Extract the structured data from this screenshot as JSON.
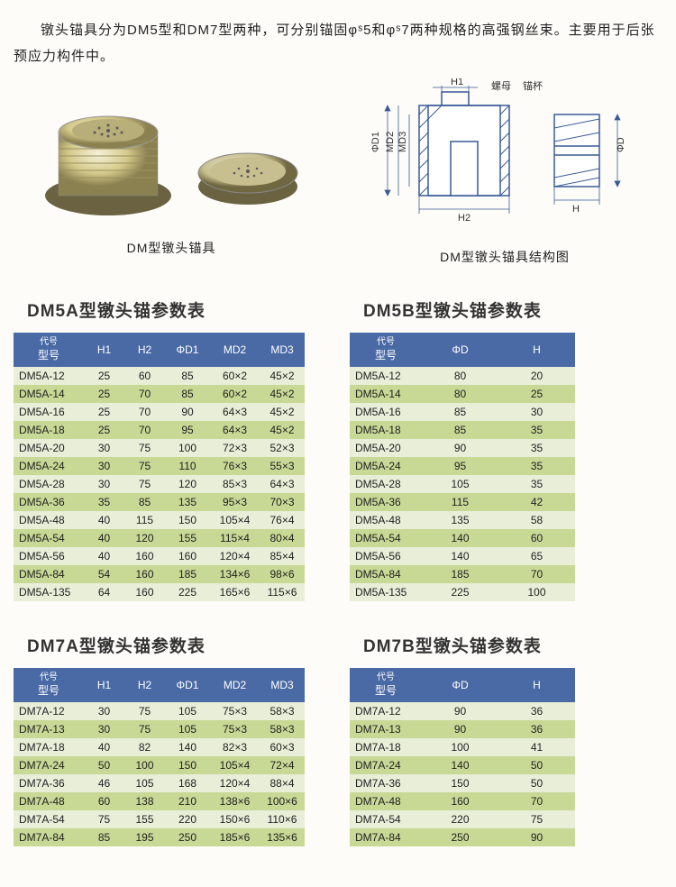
{
  "intro": "镦头锚具分为DM5型和DM7型两种，可分别锚固φˢ5和φˢ7两种规格的高强钢丝束。主要用于后张预应力构件中。",
  "fig_left_caption": "DM型镦头锚具",
  "fig_right_caption": "DM型镦头锚具结构图",
  "diagram_labels": {
    "H1": "H1",
    "H2": "H2",
    "D1": "ΦD1",
    "MD2": "MD2",
    "MD3": "MD3",
    "D": "ΦD",
    "H": "H",
    "luomu": "螺母",
    "maobei": "锚杯"
  },
  "tables": {
    "dm5a": {
      "title": "DM5A型镦头锚参数表",
      "columns": [
        {
          "label": "型号",
          "sub": "代号",
          "w": 72,
          "align": "left"
        },
        {
          "label": "H1",
          "w": 45
        },
        {
          "label": "H2",
          "w": 45
        },
        {
          "label": "ΦD1",
          "w": 50
        },
        {
          "label": "MD2",
          "w": 55
        },
        {
          "label": "MD3",
          "w": 50
        }
      ],
      "rows": [
        [
          "DM5A-12",
          "25",
          "60",
          "85",
          "60×2",
          "45×2"
        ],
        [
          "DM5A-14",
          "25",
          "70",
          "85",
          "60×2",
          "45×2"
        ],
        [
          "DM5A-16",
          "25",
          "70",
          "90",
          "64×3",
          "45×2"
        ],
        [
          "DM5A-18",
          "25",
          "70",
          "95",
          "64×3",
          "45×2"
        ],
        [
          "DM5A-20",
          "30",
          "75",
          "100",
          "72×3",
          "52×3"
        ],
        [
          "DM5A-24",
          "30",
          "75",
          "110",
          "76×3",
          "55×3"
        ],
        [
          "DM5A-28",
          "30",
          "75",
          "120",
          "85×3",
          "64×3"
        ],
        [
          "DM5A-36",
          "35",
          "85",
          "135",
          "95×3",
          "70×3"
        ],
        [
          "DM5A-48",
          "40",
          "115",
          "150",
          "105×4",
          "76×4"
        ],
        [
          "DM5A-54",
          "40",
          "120",
          "155",
          "115×4",
          "80×4"
        ],
        [
          "DM5A-56",
          "40",
          "160",
          "160",
          "120×4",
          "85×4"
        ],
        [
          "DM5A-84",
          "54",
          "160",
          "185",
          "134×6",
          "98×6"
        ],
        [
          "DM5A-135",
          "64",
          "160",
          "225",
          "165×6",
          "115×6"
        ]
      ]
    },
    "dm5b": {
      "title": "DM5B型镦头锚参数表",
      "columns": [
        {
          "label": "型号",
          "sub": "代号",
          "w": 80,
          "align": "left"
        },
        {
          "label": "ΦD",
          "w": 85
        },
        {
          "label": "H",
          "w": 85
        }
      ],
      "rows": [
        [
          "DM5A-12",
          "80",
          "20"
        ],
        [
          "DM5A-14",
          "80",
          "25"
        ],
        [
          "DM5A-16",
          "85",
          "30"
        ],
        [
          "DM5A-18",
          "85",
          "35"
        ],
        [
          "DM5A-20",
          "90",
          "35"
        ],
        [
          "DM5A-24",
          "95",
          "35"
        ],
        [
          "DM5A-28",
          "105",
          "35"
        ],
        [
          "DM5A-36",
          "115",
          "42"
        ],
        [
          "DM5A-48",
          "135",
          "58"
        ],
        [
          "DM5A-54",
          "140",
          "60"
        ],
        [
          "DM5A-56",
          "140",
          "65"
        ],
        [
          "DM5A-84",
          "185",
          "70"
        ],
        [
          "DM5A-135",
          "225",
          "100"
        ]
      ]
    },
    "dm7a": {
      "title": "DM7A型镦头锚参数表",
      "columns": [
        {
          "label": "型号",
          "sub": "代号",
          "w": 72,
          "align": "left"
        },
        {
          "label": "H1",
          "w": 45
        },
        {
          "label": "H2",
          "w": 45
        },
        {
          "label": "ΦD1",
          "w": 50
        },
        {
          "label": "MD2",
          "w": 55
        },
        {
          "label": "MD3",
          "w": 50
        }
      ],
      "rows": [
        [
          "DM7A-12",
          "30",
          "75",
          "105",
          "75×3",
          "58×3"
        ],
        [
          "DM7A-13",
          "30",
          "75",
          "105",
          "75×3",
          "58×3"
        ],
        [
          "DM7A-18",
          "40",
          "82",
          "140",
          "82×3",
          "60×3"
        ],
        [
          "DM7A-24",
          "50",
          "100",
          "150",
          "105×4",
          "72×4"
        ],
        [
          "DM7A-36",
          "46",
          "105",
          "168",
          "120×4",
          "88×4"
        ],
        [
          "DM7A-48",
          "60",
          "138",
          "210",
          "138×6",
          "100×6"
        ],
        [
          "DM7A-54",
          "75",
          "155",
          "220",
          "150×6",
          "110×6"
        ],
        [
          "DM7A-84",
          "85",
          "195",
          "250",
          "185×6",
          "135×6"
        ]
      ]
    },
    "dm7b": {
      "title": "DM7B型镦头锚参数表",
      "columns": [
        {
          "label": "型号",
          "sub": "代号",
          "w": 80,
          "align": "left"
        },
        {
          "label": "ΦD",
          "w": 85
        },
        {
          "label": "H",
          "w": 85
        }
      ],
      "rows": [
        [
          "DM7A-12",
          "90",
          "36"
        ],
        [
          "DM7A-13",
          "90",
          "36"
        ],
        [
          "DM7A-18",
          "100",
          "41"
        ],
        [
          "DM7A-24",
          "140",
          "50"
        ],
        [
          "DM7A-36",
          "150",
          "50"
        ],
        [
          "DM7A-48",
          "160",
          "70"
        ],
        [
          "DM7A-54",
          "220",
          "75"
        ],
        [
          "DM7A-84",
          "250",
          "90"
        ]
      ]
    }
  },
  "colors": {
    "header_bg": "#4a6aa5",
    "row_even": "#e8eed8",
    "row_odd": "#c8d895",
    "diagram_line": "#3a5a95"
  }
}
